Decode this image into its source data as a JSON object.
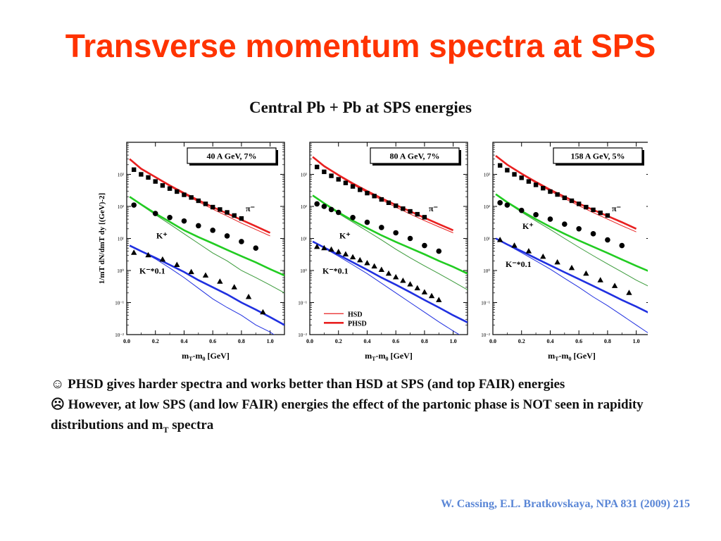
{
  "slide": {
    "title": "Transverse momentum spectra at SPS",
    "figure_title": "Central Pb + Pb at  SPS energies",
    "bullets": [
      {
        "icon": "smiley-icon",
        "symbol": "☺",
        "text": "PHSD gives harder spectra and works better than HSD at SPS (and top FAIR) energies"
      },
      {
        "icon": "frown-icon",
        "symbol": "☹",
        "text": "However, at low SPS (and low FAIR) energies the effect of the partonic phase is NOT seen in rapidity distributions and m",
        "sub": "T",
        "tail": " spectra"
      }
    ],
    "citation": "W. Cassing, E.L. Bratkovskaya,  NPA 831 (2009) 215"
  },
  "chart_data": [
    {
      "type": "line",
      "title": "40 A GeV, 7%",
      "xlabel": "mT-m0 [GeV]",
      "ylabel": "1/mT dN/dmT dy [(GeV)-2]",
      "xlim": [
        0.0,
        1.1
      ],
      "ylim_log10": [
        -2,
        4
      ],
      "y_scale": "log",
      "x_ticks": [
        "0.0",
        "0.2",
        "0.4",
        "0.6",
        "0.8",
        "1.0"
      ],
      "y_ticks": [
        "10⁻²",
        "10⁻¹",
        "10⁰",
        "10¹",
        "10²",
        "10³"
      ],
      "curve_labels": [
        "π⁻",
        "K⁺",
        "K⁻*0.1"
      ],
      "colors": {
        "pion": "#e82020",
        "kplus": "#22cc22",
        "kminus": "#2030e0"
      },
      "series": [
        {
          "kind": "points",
          "marker": "square",
          "x": [
            0.05,
            0.1,
            0.15,
            0.2,
            0.25,
            0.3,
            0.35,
            0.4,
            0.45,
            0.5,
            0.55,
            0.6,
            0.65,
            0.7,
            0.75,
            0.8
          ],
          "y": [
            1400,
            1000,
            800,
            600,
            450,
            360,
            290,
            230,
            190,
            150,
            120,
            95,
            80,
            65,
            52,
            42
          ]
        },
        {
          "kind": "line",
          "model": "HSD",
          "x": [
            0.02,
            0.1,
            0.2,
            0.3,
            0.4,
            0.5,
            0.6,
            0.7,
            0.8,
            0.9,
            1.0
          ],
          "y": [
            3000,
            1500,
            800,
            420,
            240,
            140,
            82,
            50,
            30,
            19,
            12
          ]
        },
        {
          "kind": "line",
          "model": "PHSD",
          "x": [
            0.02,
            0.1,
            0.2,
            0.3,
            0.4,
            0.5,
            0.6,
            0.7,
            0.8,
            0.9,
            1.0
          ],
          "y": [
            3000,
            1500,
            820,
            450,
            260,
            155,
            95,
            60,
            38,
            24,
            15
          ]
        },
        {
          "kind": "points",
          "marker": "circle",
          "x": [
            0.05,
            0.2,
            0.3,
            0.4,
            0.5,
            0.6,
            0.7,
            0.8,
            0.9
          ],
          "y": [
            110,
            60,
            45,
            35,
            25,
            18,
            12,
            8,
            5
          ]
        },
        {
          "kind": "line",
          "model": "HSD",
          "x": [
            0.02,
            0.1,
            0.2,
            0.3,
            0.4,
            0.5,
            0.6,
            0.7,
            0.8,
            0.9,
            1.0,
            1.1
          ],
          "y": [
            200,
            110,
            55,
            28,
            14,
            7,
            3.5,
            2,
            1,
            0.6,
            0.35,
            0.2
          ]
        },
        {
          "kind": "line",
          "model": "PHSD",
          "x": [
            0.02,
            0.1,
            0.2,
            0.3,
            0.4,
            0.5,
            0.6,
            0.7,
            0.8,
            0.9,
            1.0,
            1.1
          ],
          "y": [
            200,
            115,
            60,
            33,
            18,
            11,
            7,
            4.4,
            2.8,
            1.8,
            1.1,
            0.7
          ]
        },
        {
          "kind": "points",
          "marker": "triangle",
          "x": [
            0.05,
            0.15,
            0.25,
            0.35,
            0.45,
            0.55,
            0.65,
            0.75,
            0.85,
            0.95
          ],
          "y": [
            3.6,
            3,
            2.2,
            1.5,
            0.9,
            0.7,
            0.45,
            0.3,
            0.15,
            0.05
          ]
        },
        {
          "kind": "line",
          "model": "HSD",
          "x": [
            0.02,
            0.1,
            0.2,
            0.3,
            0.4,
            0.5,
            0.6,
            0.7,
            0.8,
            0.9,
            1.0,
            1.1
          ],
          "y": [
            6,
            4,
            2.3,
            1.2,
            0.6,
            0.28,
            0.13,
            0.07,
            0.04,
            0.02,
            0.012,
            0.006
          ]
        },
        {
          "kind": "line",
          "model": "PHSD",
          "x": [
            0.02,
            0.1,
            0.2,
            0.3,
            0.4,
            0.5,
            0.6,
            0.7,
            0.8,
            0.9,
            1.0,
            1.1
          ],
          "y": [
            6,
            4,
            2.5,
            1.5,
            0.9,
            0.5,
            0.3,
            0.18,
            0.1,
            0.06,
            0.035,
            0.02
          ]
        }
      ]
    },
    {
      "type": "line",
      "title": "80 A GeV, 7%",
      "xlabel": "mT-m0 [GeV]",
      "xlim": [
        0.0,
        1.1
      ],
      "ylim_log10": [
        -2,
        4
      ],
      "y_scale": "log",
      "x_ticks": [
        "0.0",
        "0.2",
        "0.4",
        "0.6",
        "0.8",
        "1.0"
      ],
      "y_ticks": [
        "10⁻²",
        "10⁻¹",
        "10⁰",
        "10¹",
        "10²",
        "10³"
      ],
      "curve_labels": [
        "π⁻",
        "K⁺",
        "K⁻*0.1"
      ],
      "legend": [
        "HSD",
        "PHSD"
      ],
      "legend_position": "bottom-left",
      "colors": {
        "pion": "#e82020",
        "kplus": "#22cc22",
        "kminus": "#2030e0"
      },
      "series": [
        {
          "kind": "points",
          "marker": "square",
          "x": [
            0.05,
            0.1,
            0.15,
            0.2,
            0.25,
            0.3,
            0.35,
            0.4,
            0.45,
            0.5,
            0.55,
            0.6,
            0.65,
            0.7,
            0.75,
            0.8
          ],
          "y": [
            1700,
            1200,
            900,
            700,
            540,
            420,
            330,
            260,
            210,
            165,
            130,
            105,
            85,
            70,
            57,
            46
          ]
        },
        {
          "kind": "line",
          "model": "HSD",
          "x": [
            0.02,
            0.1,
            0.2,
            0.3,
            0.4,
            0.5,
            0.6,
            0.7,
            0.8,
            0.9,
            1.0
          ],
          "y": [
            3500,
            1800,
            900,
            480,
            270,
            160,
            95,
            58,
            36,
            23,
            15
          ]
        },
        {
          "kind": "line",
          "model": "PHSD",
          "x": [
            0.02,
            0.1,
            0.2,
            0.3,
            0.4,
            0.5,
            0.6,
            0.7,
            0.8,
            0.9,
            1.0
          ],
          "y": [
            3500,
            1800,
            950,
            520,
            300,
            180,
            110,
            70,
            44,
            28,
            18
          ]
        },
        {
          "kind": "points",
          "marker": "circle",
          "x": [
            0.05,
            0.1,
            0.15,
            0.2,
            0.3,
            0.4,
            0.5,
            0.6,
            0.7,
            0.8,
            0.9
          ],
          "y": [
            120,
            100,
            80,
            65,
            45,
            32,
            22,
            15,
            10,
            6,
            4
          ]
        },
        {
          "kind": "line",
          "model": "HSD",
          "x": [
            0.02,
            0.1,
            0.2,
            0.3,
            0.4,
            0.5,
            0.6,
            0.7,
            0.8,
            0.9,
            1.0,
            1.1
          ],
          "y": [
            220,
            120,
            60,
            32,
            17,
            9,
            4.6,
            2.5,
            1.4,
            0.8,
            0.45,
            0.25
          ]
        },
        {
          "kind": "line",
          "model": "PHSD",
          "x": [
            0.02,
            0.1,
            0.2,
            0.3,
            0.4,
            0.5,
            0.6,
            0.7,
            0.8,
            0.9,
            1.0,
            1.1
          ],
          "y": [
            220,
            125,
            65,
            36,
            21,
            12.5,
            7.8,
            5,
            3.2,
            2,
            1.3,
            0.8
          ]
        },
        {
          "kind": "points",
          "marker": "triangle",
          "x": [
            0.05,
            0.1,
            0.15,
            0.2,
            0.25,
            0.3,
            0.35,
            0.4,
            0.45,
            0.5,
            0.55,
            0.6,
            0.65,
            0.7,
            0.75,
            0.8,
            0.85,
            0.9
          ],
          "y": [
            5.5,
            5,
            4.5,
            3.8,
            3.2,
            2.6,
            2.1,
            1.7,
            1.35,
            1.05,
            0.8,
            0.62,
            0.48,
            0.37,
            0.28,
            0.21,
            0.16,
            0.12
          ]
        },
        {
          "kind": "line",
          "model": "HSD",
          "x": [
            0.02,
            0.1,
            0.2,
            0.3,
            0.4,
            0.5,
            0.6,
            0.7,
            0.8,
            0.9,
            1.0,
            1.1
          ],
          "y": [
            8,
            5,
            2.8,
            1.5,
            0.8,
            0.4,
            0.2,
            0.1,
            0.05,
            0.025,
            0.013,
            0.007
          ]
        },
        {
          "kind": "line",
          "model": "PHSD",
          "x": [
            0.02,
            0.1,
            0.2,
            0.3,
            0.4,
            0.5,
            0.6,
            0.7,
            0.8,
            0.9,
            1.0,
            1.1
          ],
          "y": [
            8,
            5.2,
            3.1,
            1.8,
            1.05,
            0.6,
            0.36,
            0.21,
            0.12,
            0.07,
            0.04,
            0.024
          ]
        }
      ]
    },
    {
      "type": "line",
      "title": "158 A GeV, 5%",
      "xlabel": "mT-m0 [GeV]",
      "xlim": [
        0.0,
        1.1
      ],
      "ylim_log10": [
        -2,
        4
      ],
      "y_scale": "log",
      "x_ticks": [
        "0.0",
        "0.2",
        "0.4",
        "0.6",
        "0.8",
        "1.0"
      ],
      "y_ticks": [
        "10⁻²",
        "10⁻¹",
        "10⁰",
        "10¹",
        "10²",
        "10³"
      ],
      "curve_labels": [
        "π⁻",
        "K⁺",
        "K⁻*0.1"
      ],
      "colors": {
        "pion": "#e82020",
        "kplus": "#22cc22",
        "kminus": "#2030e0"
      },
      "series": [
        {
          "kind": "points",
          "marker": "square",
          "x": [
            0.05,
            0.1,
            0.15,
            0.2,
            0.25,
            0.3,
            0.35,
            0.4,
            0.45,
            0.5,
            0.55,
            0.6,
            0.65,
            0.7,
            0.75,
            0.8
          ],
          "y": [
            1900,
            1350,
            1000,
            780,
            600,
            470,
            370,
            290,
            235,
            185,
            150,
            120,
            95,
            78,
            63,
            52
          ]
        },
        {
          "kind": "line",
          "model": "HSD",
          "x": [
            0.02,
            0.1,
            0.2,
            0.3,
            0.4,
            0.5,
            0.6,
            0.7,
            0.8,
            0.9,
            1.0
          ],
          "y": [
            3800,
            2000,
            1000,
            540,
            300,
            175,
            105,
            64,
            40,
            25,
            16
          ]
        },
        {
          "kind": "line",
          "model": "PHSD",
          "x": [
            0.02,
            0.1,
            0.2,
            0.3,
            0.4,
            0.5,
            0.6,
            0.7,
            0.8,
            0.9,
            1.0
          ],
          "y": [
            3800,
            2000,
            1050,
            580,
            330,
            200,
            122,
            78,
            50,
            32,
            20
          ]
        },
        {
          "kind": "points",
          "marker": "circle",
          "x": [
            0.05,
            0.1,
            0.2,
            0.3,
            0.4,
            0.5,
            0.6,
            0.7,
            0.8,
            0.9
          ],
          "y": [
            130,
            110,
            75,
            55,
            40,
            28,
            20,
            14,
            9,
            6
          ]
        },
        {
          "kind": "line",
          "model": "HSD",
          "x": [
            0.02,
            0.1,
            0.2,
            0.3,
            0.4,
            0.5,
            0.6,
            0.7,
            0.8,
            0.9,
            1.0,
            1.1
          ],
          "y": [
            240,
            130,
            66,
            35,
            19,
            10,
            5.3,
            2.9,
            1.6,
            0.9,
            0.5,
            0.3
          ]
        },
        {
          "kind": "line",
          "model": "PHSD",
          "x": [
            0.02,
            0.1,
            0.2,
            0.3,
            0.4,
            0.5,
            0.6,
            0.7,
            0.8,
            0.9,
            1.0,
            1.1
          ],
          "y": [
            240,
            135,
            72,
            40,
            23,
            14,
            8.6,
            5.5,
            3.5,
            2.2,
            1.4,
            0.9
          ]
        },
        {
          "kind": "points",
          "marker": "triangle",
          "x": [
            0.05,
            0.15,
            0.25,
            0.35,
            0.45,
            0.55,
            0.65,
            0.75,
            0.85,
            0.95
          ],
          "y": [
            9,
            6,
            4,
            2.7,
            1.8,
            1.2,
            0.8,
            0.5,
            0.33,
            0.2
          ]
        },
        {
          "kind": "line",
          "model": "HSD",
          "x": [
            0.02,
            0.1,
            0.2,
            0.3,
            0.4,
            0.5,
            0.6,
            0.7,
            0.8,
            0.9,
            1.0,
            1.1
          ],
          "y": [
            10,
            6.3,
            3.6,
            2,
            1.1,
            0.57,
            0.3,
            0.15,
            0.08,
            0.04,
            0.02,
            0.01
          ]
        },
        {
          "kind": "line",
          "model": "PHSD",
          "x": [
            0.02,
            0.1,
            0.2,
            0.3,
            0.4,
            0.5,
            0.6,
            0.7,
            0.8,
            0.9,
            1.0,
            1.1
          ],
          "y": [
            10,
            6.5,
            4,
            2.4,
            1.45,
            0.88,
            0.54,
            0.33,
            0.2,
            0.12,
            0.075,
            0.045
          ]
        }
      ]
    }
  ]
}
